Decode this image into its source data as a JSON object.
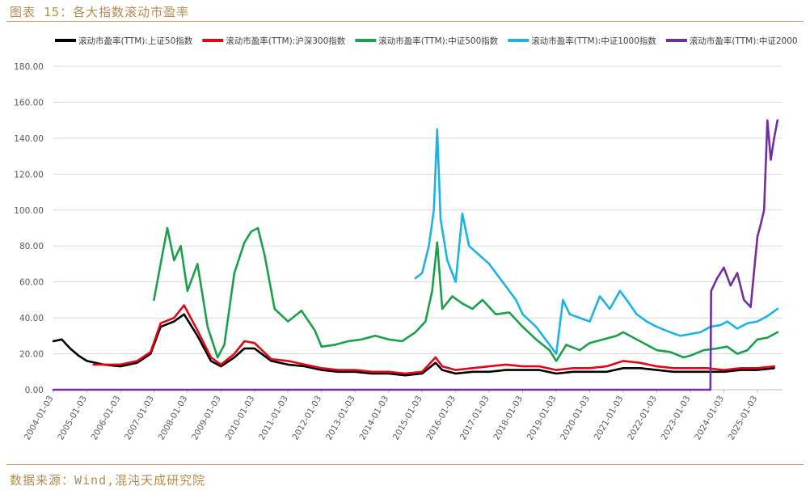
{
  "header": {
    "title": "图表 15：各大指数滚动市盈率"
  },
  "footer": {
    "source": "数据来源：Wind,混沌天成研究院"
  },
  "colors": {
    "sz50": "#000000",
    "hs300": "#e30613",
    "zz500": "#1aa04a",
    "zz1000": "#1ab3e6",
    "zz2000": "#7030a0",
    "grid": "#d9d9d9",
    "axis": "#bfbfbf"
  },
  "chart_data": {
    "type": "line",
    "title": "",
    "xlabel": "",
    "ylabel": "",
    "ylim": [
      0,
      180
    ],
    "yticks": [
      "0.00",
      "20.00",
      "40.00",
      "60.00",
      "80.00",
      "100.00",
      "120.00",
      "140.00",
      "160.00",
      "180.00"
    ],
    "xticks": [
      "2004-01-03",
      "2005-01-03",
      "2006-01-03",
      "2007-01-03",
      "2008-01-03",
      "2009-01-03",
      "2010-01-03",
      "2011-01-03",
      "2012-01-03",
      "2013-01-03",
      "2014-01-03",
      "2015-01-03",
      "2016-01-03",
      "2017-01-03",
      "2018-01-03",
      "2019-01-03",
      "2020-01-03",
      "2021-01-03",
      "2022-01-03",
      "2023-01-03",
      "2024-01-03",
      "2025-01-03"
    ],
    "grid": "horizontal",
    "legend_position": "top",
    "series": [
      {
        "name": "滚动市盈率(TTM):上证50指数",
        "color_key": "sz50",
        "x": [
          2004.0,
          2004.25,
          2004.5,
          2004.75,
          2005.0,
          2005.5,
          2006.0,
          2006.5,
          2006.9,
          2007.2,
          2007.6,
          2007.9,
          2008.3,
          2008.7,
          2009.0,
          2009.4,
          2009.7,
          2010.0,
          2010.5,
          2011.0,
          2011.5,
          2012.0,
          2012.5,
          2013.0,
          2013.5,
          2014.0,
          2014.5,
          2015.0,
          2015.4,
          2015.6,
          2016.0,
          2016.5,
          2017.0,
          2017.5,
          2018.0,
          2018.5,
          2019.0,
          2019.5,
          2020.0,
          2020.5,
          2021.0,
          2021.5,
          2022.0,
          2022.5,
          2023.0,
          2023.5,
          2024.0,
          2024.5,
          2025.0,
          2025.5
        ],
        "y": [
          27,
          28,
          23,
          19,
          16,
          14,
          13,
          15,
          20,
          35,
          38,
          42,
          30,
          16,
          13,
          18,
          23,
          23,
          16,
          14,
          13,
          11,
          10,
          10,
          9,
          9,
          8,
          9,
          15,
          11,
          9,
          10,
          10,
          11,
          11,
          11,
          9,
          10,
          10,
          10,
          12,
          12,
          11,
          10,
          10,
          10,
          10,
          11,
          11,
          12
        ]
      },
      {
        "name": "滚动市盈率(TTM):沪深300指数",
        "color_key": "hs300",
        "x": [
          2005.2,
          2005.5,
          2006.0,
          2006.5,
          2006.9,
          2007.2,
          2007.6,
          2007.9,
          2008.3,
          2008.7,
          2009.0,
          2009.4,
          2009.7,
          2010.0,
          2010.5,
          2011.0,
          2011.5,
          2012.0,
          2012.5,
          2013.0,
          2013.5,
          2014.0,
          2014.5,
          2015.0,
          2015.4,
          2015.6,
          2016.0,
          2016.5,
          2017.0,
          2017.5,
          2018.0,
          2018.5,
          2019.0,
          2019.5,
          2020.0,
          2020.5,
          2021.0,
          2021.5,
          2022.0,
          2022.5,
          2023.0,
          2023.5,
          2024.0,
          2024.5,
          2025.0,
          2025.5
        ],
        "y": [
          14,
          14,
          14,
          16,
          21,
          37,
          40,
          47,
          33,
          18,
          14,
          20,
          27,
          26,
          17,
          16,
          14,
          12,
          11,
          11,
          10,
          10,
          9,
          10,
          18,
          13,
          11,
          12,
          13,
          14,
          13,
          13,
          11,
          12,
          12,
          13,
          16,
          15,
          13,
          12,
          12,
          12,
          11,
          12,
          12,
          13
        ]
      },
      {
        "name": "滚动市盈率(TTM):中证500指数",
        "color_key": "zz500",
        "x": [
          2007.0,
          2007.2,
          2007.4,
          2007.6,
          2007.8,
          2008.0,
          2008.3,
          2008.6,
          2008.9,
          2009.1,
          2009.4,
          2009.7,
          2009.9,
          2010.1,
          2010.3,
          2010.6,
          2011.0,
          2011.4,
          2011.8,
          2012.0,
          2012.4,
          2012.8,
          2013.2,
          2013.6,
          2014.0,
          2014.4,
          2014.8,
          2015.1,
          2015.3,
          2015.45,
          2015.6,
          2015.9,
          2016.2,
          2016.5,
          2016.8,
          2017.2,
          2017.6,
          2018.0,
          2018.4,
          2018.8,
          2019.0,
          2019.3,
          2019.7,
          2020.0,
          2020.4,
          2020.8,
          2021.0,
          2021.3,
          2021.7,
          2022.0,
          2022.4,
          2022.8,
          2023.0,
          2023.4,
          2023.8,
          2024.1,
          2024.4,
          2024.7,
          2025.0,
          2025.3,
          2025.6
        ],
        "y": [
          50,
          70,
          90,
          72,
          80,
          55,
          70,
          35,
          18,
          25,
          65,
          82,
          88,
          90,
          75,
          45,
          38,
          44,
          33,
          24,
          25,
          27,
          28,
          30,
          28,
          27,
          32,
          38,
          55,
          82,
          45,
          52,
          48,
          45,
          50,
          42,
          43,
          35,
          28,
          22,
          16,
          25,
          22,
          26,
          28,
          30,
          32,
          29,
          25,
          22,
          21,
          18,
          19,
          22,
          23,
          24,
          20,
          22,
          28,
          29,
          32
        ]
      },
      {
        "name": "滚动市盈率(TTM):中证1000指数",
        "color_key": "zz1000",
        "x": [
          2014.8,
          2015.0,
          2015.2,
          2015.35,
          2015.45,
          2015.55,
          2015.75,
          2016.0,
          2016.2,
          2016.4,
          2016.7,
          2017.0,
          2017.4,
          2017.8,
          2018.0,
          2018.4,
          2018.8,
          2019.0,
          2019.2,
          2019.4,
          2019.7,
          2020.0,
          2020.3,
          2020.6,
          2020.9,
          2021.1,
          2021.4,
          2021.7,
          2022.0,
          2022.4,
          2022.7,
          2023.0,
          2023.3,
          2023.6,
          2023.9,
          2024.1,
          2024.4,
          2024.7,
          2025.0,
          2025.3,
          2025.6
        ],
        "y": [
          62,
          65,
          80,
          100,
          145,
          95,
          72,
          60,
          98,
          80,
          75,
          70,
          60,
          50,
          42,
          35,
          25,
          20,
          50,
          42,
          40,
          38,
          52,
          45,
          55,
          50,
          42,
          38,
          35,
          32,
          30,
          31,
          32,
          35,
          36,
          38,
          34,
          37,
          38,
          41,
          45
        ]
      },
      {
        "name": "滚动市盈率(TTM):中证2000",
        "color_key": "zz2000",
        "x": [
          2004.0,
          2023.6,
          2023.62,
          2023.8,
          2024.0,
          2024.2,
          2024.4,
          2024.6,
          2024.8,
          2025.0,
          2025.1,
          2025.2,
          2025.3,
          2025.4,
          2025.5,
          2025.6
        ],
        "y": [
          0,
          0,
          55,
          62,
          68,
          58,
          65,
          50,
          46,
          85,
          92,
          100,
          150,
          128,
          140,
          150
        ]
      }
    ]
  }
}
